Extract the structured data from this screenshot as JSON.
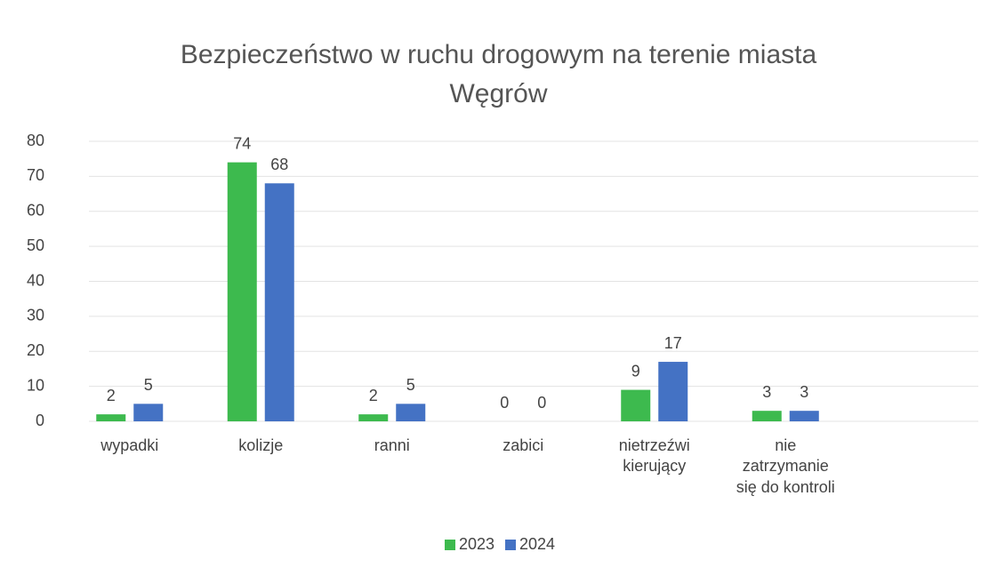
{
  "chart_data": {
    "type": "bar",
    "title": "Bezpieczeństwo w ruchu drogowym na terenie miasta\nWęgrów",
    "categories": [
      "wypadki",
      "kolizje",
      "ranni",
      "zabici",
      "nietrzeźwi\nkierujący",
      "nie\nzatrzymanie\nsię do kontroli"
    ],
    "series": [
      {
        "name": "2023",
        "color": "#3dba4e",
        "values": [
          2,
          74,
          2,
          0,
          9,
          3
        ]
      },
      {
        "name": "2024",
        "color": "#4472c4",
        "values": [
          5,
          68,
          5,
          0,
          17,
          3
        ]
      }
    ],
    "ylim": [
      0,
      80
    ],
    "yticks": [
      0,
      10,
      20,
      30,
      40,
      50,
      60,
      70,
      80
    ],
    "grid": true,
    "legend": "bottom"
  }
}
